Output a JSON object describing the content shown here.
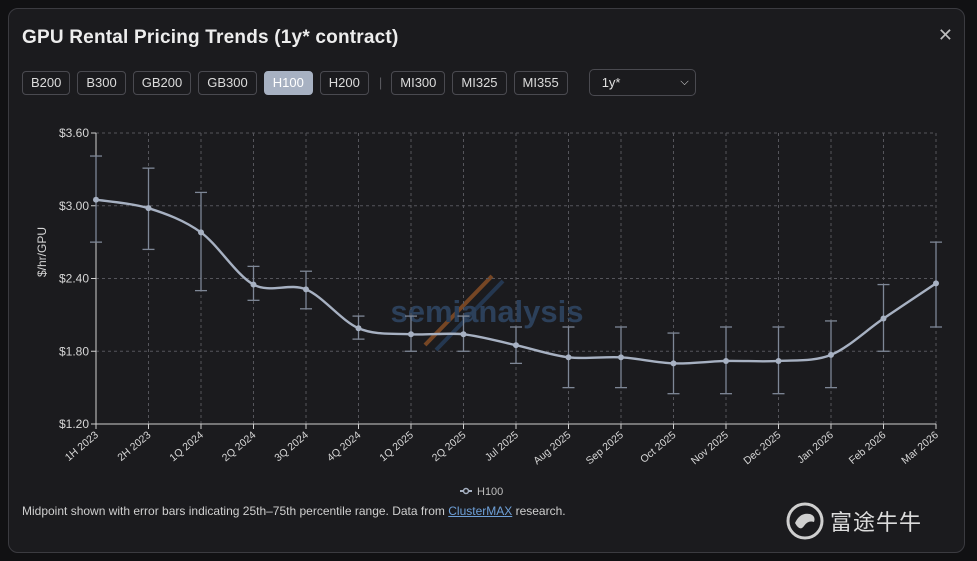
{
  "header": {
    "title": "GPU Rental Pricing Trends (1y* contract)",
    "close_icon": "close-icon"
  },
  "tabs": {
    "group1": [
      "B200",
      "B300",
      "GB200",
      "GB300",
      "H100",
      "H200"
    ],
    "separator": "|",
    "group2": [
      "MI300",
      "MI325",
      "MI355"
    ],
    "active": "H100"
  },
  "contract_select": {
    "value": "1y*"
  },
  "watermark": {
    "text": "semianalysis"
  },
  "footer": {
    "text_before": "Midpoint shown with error bars indicating 25th–75th percentile range. Data from ",
    "link": "ClusterMAX",
    "text_after": " research."
  },
  "brand": {
    "text": "富途牛牛"
  },
  "colors": {
    "accent": "#a7b1c2",
    "grid": "#55555b"
  },
  "chart_data": {
    "type": "line",
    "ylabel": "$/hr/GPU",
    "xlabel": "",
    "ylim": [
      1.2,
      3.6
    ],
    "yticks": [
      1.2,
      1.8,
      2.4,
      3.0,
      3.6
    ],
    "ytick_labels": [
      "$1.20",
      "$1.80",
      "$2.40",
      "$3.00",
      "$3.60"
    ],
    "grid": true,
    "legend_position": "bottom-center",
    "categories": [
      "1H 2023",
      "2H 2023",
      "1Q 2024",
      "2Q 2024",
      "3Q 2024",
      "4Q 2024",
      "1Q 2025",
      "2Q 2025",
      "Jul 2025",
      "Aug 2025",
      "Sep 2025",
      "Oct 2025",
      "Nov 2025",
      "Dec 2025",
      "Jan 2026",
      "Feb 2026",
      "Mar 2026"
    ],
    "series": [
      {
        "name": "H100",
        "values": [
          3.05,
          2.98,
          2.78,
          2.35,
          2.31,
          1.99,
          1.94,
          1.94,
          1.85,
          1.75,
          1.75,
          1.7,
          1.72,
          1.72,
          1.77,
          2.07,
          2.36
        ],
        "low": [
          2.7,
          2.64,
          2.3,
          2.22,
          2.15,
          1.9,
          1.8,
          1.8,
          1.7,
          1.5,
          1.5,
          1.45,
          1.45,
          1.45,
          1.5,
          1.8,
          2.0
        ],
        "high": [
          3.41,
          3.31,
          3.11,
          2.5,
          2.46,
          2.09,
          2.09,
          2.09,
          2.0,
          2.0,
          2.0,
          1.95,
          2.0,
          2.0,
          2.05,
          2.35,
          2.7
        ]
      }
    ]
  }
}
